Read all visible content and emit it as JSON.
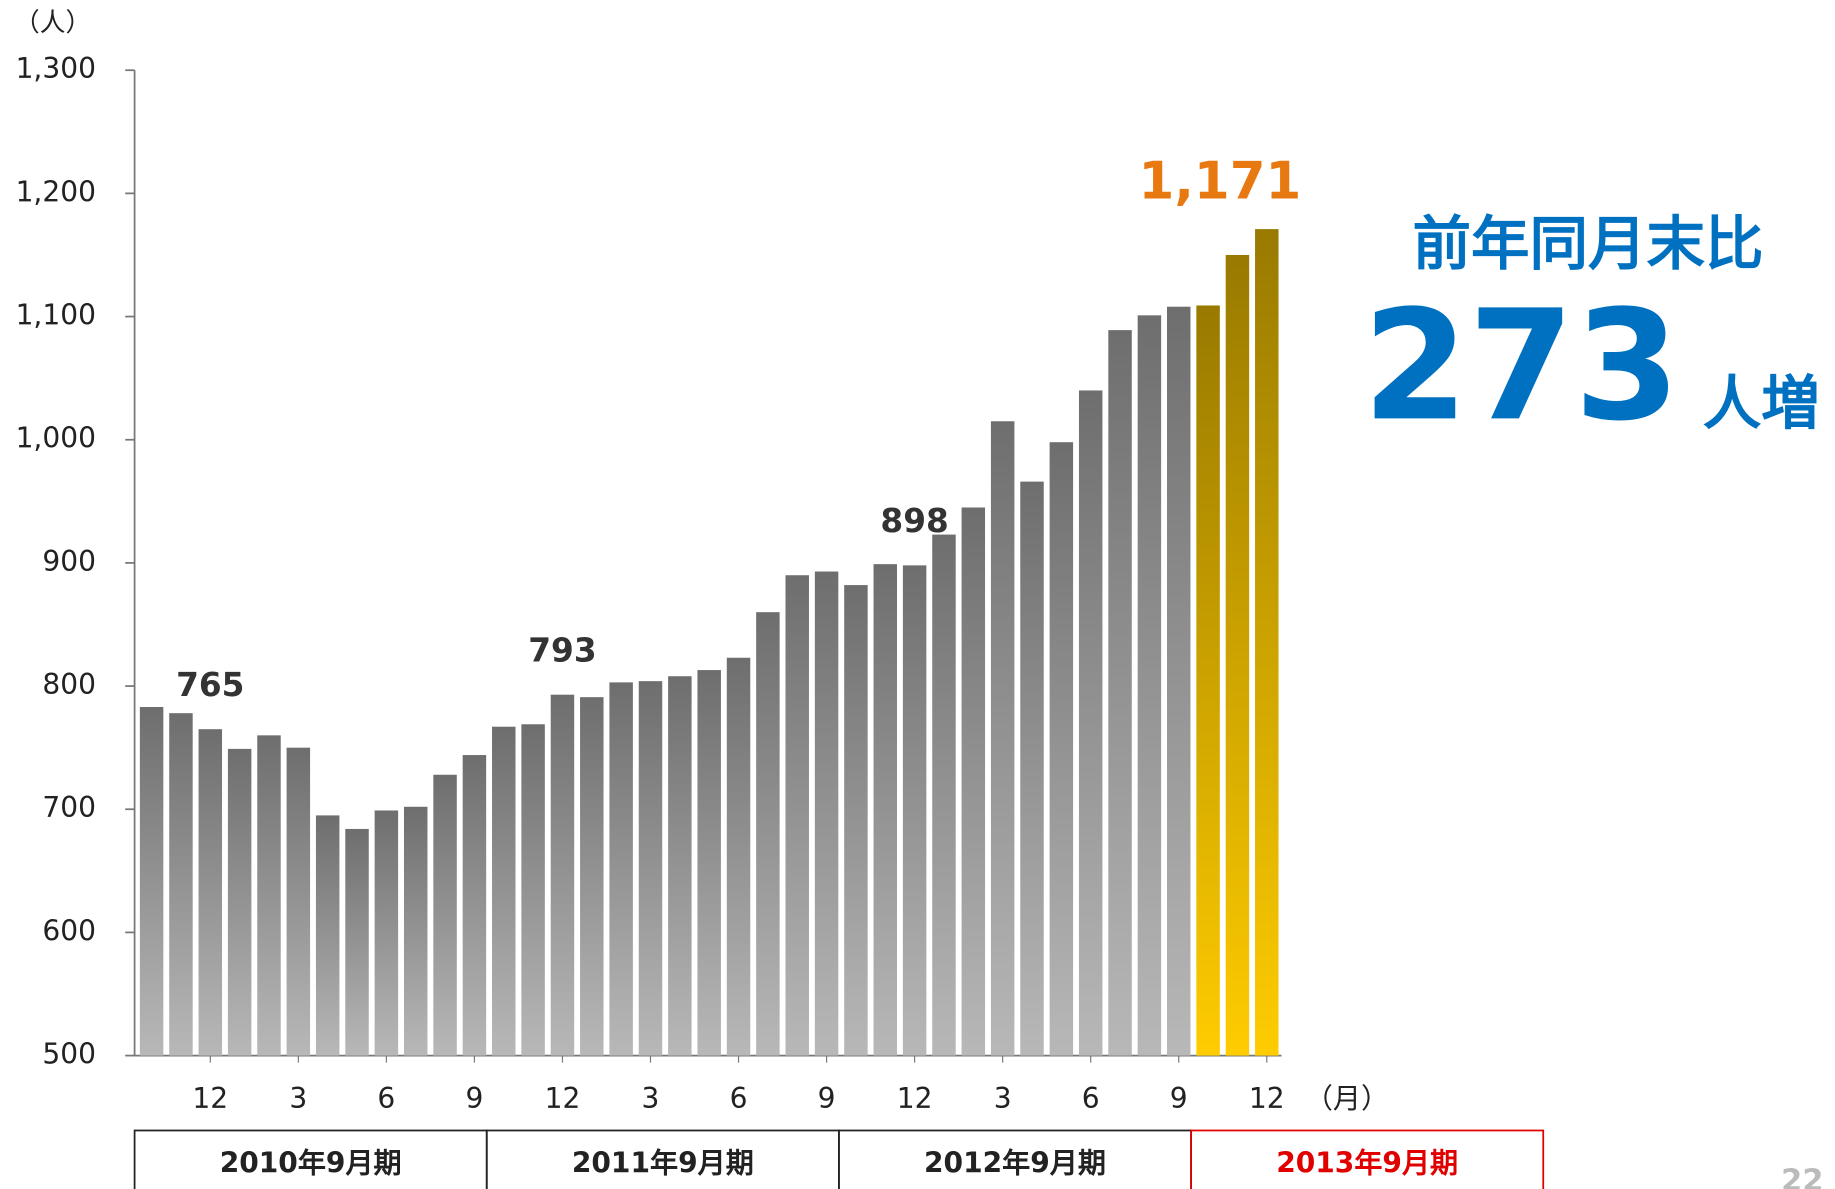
{
  "chart_data": {
    "type": "bar",
    "y_unit": "（人）",
    "x_unit": "（月）",
    "categories": [
      null,
      null,
      "12",
      null,
      null,
      "3",
      null,
      null,
      "6",
      null,
      null,
      "9",
      null,
      null,
      "12",
      null,
      null,
      "3",
      null,
      null,
      "6",
      null,
      null,
      "9",
      null,
      null,
      "12",
      null,
      null,
      "3",
      null,
      null,
      "6",
      null,
      null,
      "9",
      null,
      null,
      "12"
    ],
    "values": [
      783,
      778,
      765,
      749,
      760,
      750,
      695,
      684,
      699,
      702,
      728,
      744,
      767,
      769,
      793,
      791,
      803,
      804,
      808,
      813,
      823,
      860,
      890,
      893,
      882,
      899,
      898,
      923,
      945,
      1015,
      966,
      998,
      1040,
      1089,
      1101,
      1108,
      1109,
      1150,
      1171
    ],
    "value_labels": [
      null,
      null,
      "765",
      null,
      null,
      null,
      null,
      null,
      null,
      null,
      null,
      null,
      null,
      null,
      "793",
      null,
      null,
      null,
      null,
      null,
      null,
      null,
      null,
      null,
      null,
      null,
      "898",
      null,
      null,
      null,
      null,
      null,
      null,
      null,
      null,
      null,
      null,
      null,
      "1,171"
    ],
    "colors": [
      "#b8b8b8",
      "#b8b8b8",
      "#b8b8b8",
      "#b8b8b8",
      "#b8b8b8",
      "#b8b8b8",
      "#b8b8b8",
      "#b8b8b8",
      "#b8b8b8",
      "#b8b8b8",
      "#b8b8b8",
      "#b8b8b8",
      "#b8b8b8",
      "#b8b8b8",
      "#b8b8b8",
      "#b8b8b8",
      "#b8b8b8",
      "#b8b8b8",
      "#b8b8b8",
      "#b8b8b8",
      "#b8b8b8",
      "#b8b8b8",
      "#b8b8b8",
      "#b8b8b8",
      "#b8b8b8",
      "#b8b8b8",
      "#b8b8b8",
      "#b8b8b8",
      "#b8b8b8",
      "#b8b8b8",
      "#b8b8b8",
      "#b8b8b8",
      "#b8b8b8",
      "#b8b8b8",
      "#b8b8b8",
      "#b8b8b8",
      "#ffcc00",
      "#ffcc00",
      "#ffcc00"
    ],
    "ylim": [
      500,
      1300
    ],
    "yticks": [
      500,
      600,
      700,
      800,
      900,
      {
        "value": 1000,
        "label": "1,000"
      },
      {
        "value": 1100,
        "label": "1,100"
      },
      {
        "value": 1200,
        "label": "1,200"
      },
      {
        "value": 1300,
        "label": "1,300"
      }
    ],
    "periods": [
      {
        "label": "2010年9月期",
        "color": "#222222"
      },
      {
        "label": "2011年9月期",
        "color": "#222222"
      },
      {
        "label": "2012年9月期",
        "color": "#222222"
      },
      {
        "label": "2013年9月期",
        "color": "#e00000"
      }
    ],
    "annotation": {
      "line1": "前年同月末比",
      "number": "273",
      "suffix": "人増",
      "color": "#0070c0"
    },
    "page_number": "22"
  }
}
